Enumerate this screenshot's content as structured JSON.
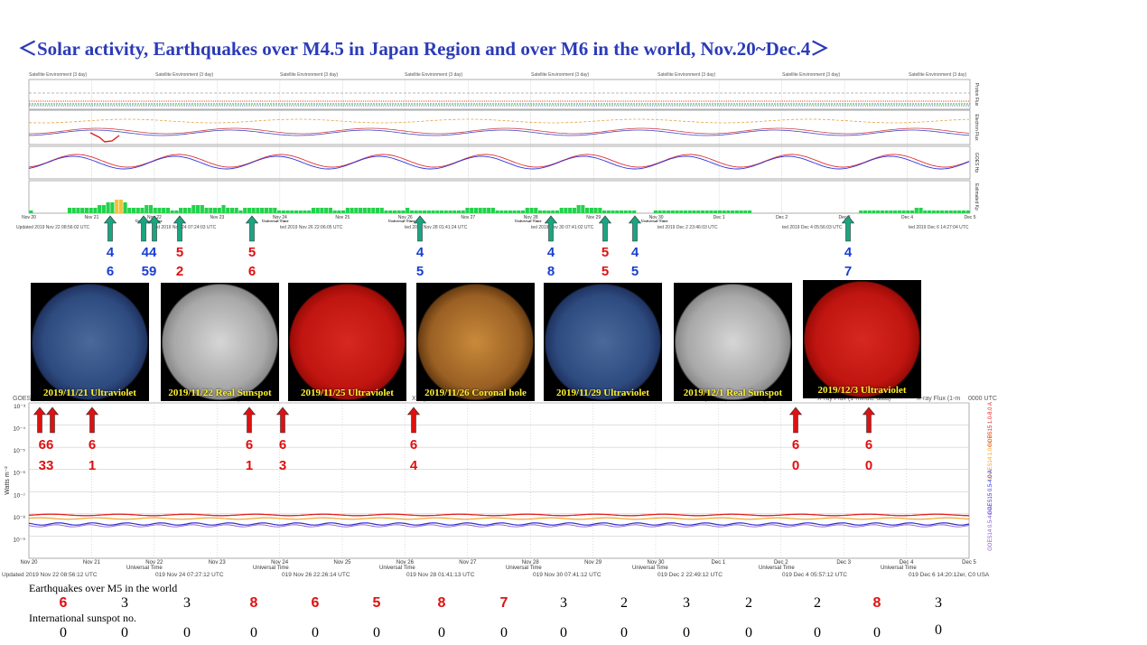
{
  "title": "＜Solar activity, Earthquakes over M4.5 in Japan Region and over M6 in the world,   Nov.20~Dec.4＞",
  "goes_panel": {
    "panel_headers": [
      "Satellite Environment (3 day)",
      "Satellite Environment (3 day)",
      "Satellite Environment (3 day)",
      "Satellite Environment (3 day)",
      "Satellite Environment (3 day)",
      "Satellite Environment (3 day)",
      "Satellite Environment (3 day)",
      "Satellite Environment (3 day)"
    ],
    "side_labels": [
      "Proton Flux",
      "Electron Flux",
      "GOES Hp",
      "Estimated Kp"
    ],
    "date_ticks": [
      "Nov 20",
      "Nov 21",
      "Nov 22",
      "Nov 23",
      "Nov 24",
      "Nov 25",
      "Nov 26",
      "Nov 27",
      "Nov 28",
      "Nov 29",
      "Nov 30",
      "Dec 1",
      "Dec 2",
      "Dec 3",
      "Dec 4",
      "Dec 5"
    ],
    "universal_time": "Universal Time",
    "updated": [
      "Updated 2019 Nov 22 08:56:02 UTC",
      "ted 2019 Nov 24 07:24:03 UTC",
      "ted 2019 Nov 26 22:06:05 UTC",
      "ted 2019 Nov 28 01:41:24 UTC",
      "ted 2019 Nov 30 07:41:02 UTC",
      "ted 2019 Dec  2 23:46:03 UTC",
      "ted 2019 Dec  4 05:56:03 UTC",
      "ted 2019 Dec  6 14:27:04 UTC"
    ]
  },
  "japan_quakes": [
    {
      "top": "4",
      "bottom": "6",
      "color": "#1a3fd1"
    },
    {
      "top": "44",
      "bottom": "59",
      "color": "#1a3fd1"
    },
    {
      "top": "5",
      "bottom": "2",
      "color": "#e01010"
    },
    {
      "top": "5",
      "bottom": "6",
      "color": "#e01010"
    },
    {
      "top": "4",
      "bottom": "5",
      "color": "#1a3fd1"
    },
    {
      "top": "4",
      "bottom": "8",
      "color": "#1a3fd1"
    },
    {
      "top": "5",
      "bottom": "5",
      "color": "#e01010"
    },
    {
      "top": "4",
      "bottom": "5",
      "color": "#1a3fd1"
    },
    {
      "top": "4",
      "bottom": "7",
      "color": "#1a3fd1"
    }
  ],
  "solar_images": [
    {
      "caption": "2019/11/21 Ultraviolet",
      "kind": "uv"
    },
    {
      "caption": "2019/11/22 Real Sunspot",
      "kind": "visible"
    },
    {
      "caption": "2019/11/25 Ultraviolet",
      "kind": "red"
    },
    {
      "caption": "2019/11/26 Coronal hole",
      "kind": "gold"
    },
    {
      "caption": "2019/11/29 Ultraviolet",
      "kind": "uv"
    },
    {
      "caption": "2019/12/1 Real Sunspot",
      "kind": "visible"
    },
    {
      "caption": "2019/12/3 Ultraviolet",
      "kind": "red"
    }
  ],
  "xray_panel": {
    "header_fragments": [
      "GOES",
      "X-ray",
      "X-ray",
      "Xray Flux (1 minute data)",
      "X-ray Flux (1-minute data)",
      "X-ray Flux (1-m",
      "0000 UTC"
    ],
    "y_label": "Watts m⁻²",
    "y_ticks": [
      "10⁻³",
      "10⁻⁴",
      "10⁻⁵",
      "10⁻⁶",
      "10⁻⁷",
      "10⁻⁸",
      "10⁻⁹"
    ],
    "legend_right": [
      "GOES15 1.0-8.0 A",
      "GOES14 1.0-8.0 A",
      "GOES15 0.5-4.0 A",
      "GOES14 0.5-4.0 A"
    ],
    "date_ticks": [
      "Nov 20",
      "Nov 21",
      "Nov 22",
      "Nov 23",
      "Nov 24",
      "Nov 25",
      "Nov 26",
      "Nov 27",
      "Nov 28",
      "Nov 29",
      "Nov 30",
      "Dec 1",
      "Dec 2",
      "Dec 3",
      "Dec 4",
      "Dec 5"
    ],
    "universal_time": "Universal Time",
    "updated": [
      "Updated 2019 Nov 22 08:56:12 UTC",
      "019 Nov 24 07:27:12 UTC",
      "019 Nov 26 22:26:14 UTC",
      "019 Nov 28 01:41:13 UTC",
      "019 Nov 30 07:41:12 UTC",
      "019 Dec  2 22:49:12 UTC",
      "019 Dec  4 05:57:12 UTC",
      "019 Dec  6 14:20:12er, C0 USA"
    ]
  },
  "world_quakes": [
    {
      "top": "66",
      "bottom": "33"
    },
    {
      "top": "6",
      "bottom": "1"
    },
    {
      "top": "6",
      "bottom": "1"
    },
    {
      "top": "6",
      "bottom": "3"
    },
    {
      "top": "6",
      "bottom": "4"
    },
    {
      "top": "6",
      "bottom": "0"
    },
    {
      "top": "6",
      "bottom": "0"
    }
  ],
  "earthquakes_label": "Earthquakes over M5 in the world",
  "earthquakes_counts": [
    "6",
    "3",
    "3",
    "8",
    "6",
    "5",
    "8",
    "7",
    "3",
    "2",
    "3",
    "2",
    "2",
    "8",
    "3"
  ],
  "sunspot_label": "International sunspot no.",
  "sunspot_counts": [
    "0",
    "0",
    "0",
    "0",
    "0",
    "0",
    "0",
    "0",
    "0",
    "0",
    "0",
    "0",
    "0",
    "0",
    "0"
  ],
  "chart_data": {
    "type": "bar",
    "title": "",
    "xlabel": "Universal Time",
    "ylabel": "",
    "categories": [
      "Nov 20",
      "Nov 21",
      "Nov 22",
      "Nov 23",
      "Nov 24",
      "Nov 25",
      "Nov 26",
      "Nov 27",
      "Nov 28",
      "Nov 29",
      "Nov 30",
      "Dec 1",
      "Dec 2",
      "Dec 3",
      "Dec 4"
    ],
    "series": [
      {
        "values": [
          6,
          3,
          3,
          8,
          6,
          5,
          8,
          7,
          3,
          2,
          3,
          2,
          2,
          8,
          3
        ]
      },
      {
        "values": [
          0,
          0,
          0,
          0,
          0,
          0,
          0,
          0,
          0,
          0,
          0,
          0,
          0,
          0,
          0
        ]
      }
    ],
    "kp_bars": [
      1,
      0,
      0,
      0,
      0,
      0,
      0,
      0,
      0,
      2,
      2,
      2,
      2,
      2,
      2,
      2,
      3,
      3,
      4,
      4,
      5,
      5,
      4,
      2,
      2,
      2,
      2,
      3,
      3,
      2,
      2,
      2,
      2,
      1,
      1,
      2,
      2,
      2,
      3,
      3,
      3,
      2,
      2,
      2,
      2,
      3,
      2,
      2,
      2,
      1,
      2,
      2,
      2,
      2,
      2,
      2,
      2,
      2,
      1,
      1,
      1,
      1,
      1,
      1,
      1,
      1,
      2,
      2,
      2,
      2,
      2,
      1,
      1,
      1,
      2,
      2,
      2,
      2,
      2,
      2,
      2,
      2,
      2,
      1,
      1,
      1,
      1,
      1,
      2,
      1,
      1,
      1,
      1,
      1,
      1,
      1,
      1,
      1,
      1,
      1,
      1,
      1,
      2,
      2,
      2,
      2,
      2,
      2,
      2,
      1,
      1,
      1,
      1,
      1,
      1,
      1,
      2,
      2,
      2,
      1,
      1,
      1,
      1,
      1,
      2,
      2,
      2,
      2,
      3,
      3,
      2,
      2,
      2,
      2,
      1,
      1,
      1,
      1,
      1,
      1,
      1,
      1,
      0,
      0,
      0,
      0,
      1,
      1,
      1,
      1,
      1,
      1,
      1,
      1,
      1,
      1,
      1,
      1,
      1,
      1,
      1,
      1,
      1,
      1,
      1,
      1,
      1,
      1,
      1,
      0,
      0,
      0,
      0,
      0,
      0,
      0,
      0,
      0,
      0,
      0,
      0,
      0,
      0,
      0,
      0,
      0,
      0,
      0,
      0,
      0,
      0,
      0,
      0,
      0,
      1,
      1,
      1,
      1,
      1,
      1,
      1,
      1,
      1,
      1,
      1,
      1,
      1,
      2,
      2,
      1,
      1,
      1,
      1,
      1,
      1,
      1,
      1,
      1,
      1,
      1
    ],
    "kp_storm_indices": [
      20,
      21
    ]
  }
}
